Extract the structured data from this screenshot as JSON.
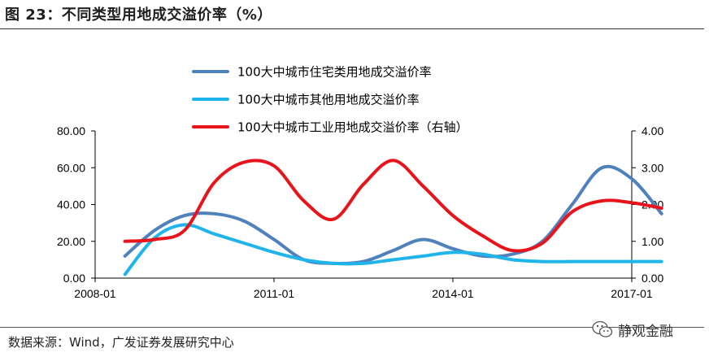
{
  "header": {
    "title": "图 23：不同类型用地成交溢价率（%）"
  },
  "footer": {
    "source": "数据来源：Wind，广发证券发展研究中心",
    "watermark": "静观金融",
    "watermark_icon": "wechat-icon"
  },
  "chart_data": {
    "type": "line",
    "title": "",
    "xlabel": "",
    "ylabel": "",
    "x_tick_labels": [
      "2008-01",
      "2011-01",
      "2014-01",
      "2017-01"
    ],
    "x_range": [
      2008.0,
      2017.0
    ],
    "ylim": [
      0,
      80
    ],
    "y_ticks": [
      "0.00",
      "20.00",
      "40.00",
      "60.00",
      "80.00"
    ],
    "ylim_right": [
      0,
      4
    ],
    "y2_ticks": [
      "0.00",
      "1.00",
      "2.00",
      "3.00",
      "4.00"
    ],
    "grid": false,
    "legend_position": "top-center",
    "series": [
      {
        "name": "100大中城市住宅类用地成交溢价率",
        "axis": "left",
        "color": "#4f81bd",
        "x": [
          2008.5,
          2009.0,
          2009.5,
          2010.0,
          2010.5,
          2011.0,
          2011.5,
          2012.0,
          2012.5,
          2013.0,
          2013.5,
          2014.0,
          2014.5,
          2015.0,
          2015.5,
          2016.0,
          2016.5,
          2017.0,
          2017.5
        ],
        "values": [
          12,
          26,
          34,
          35,
          31,
          21,
          10,
          8,
          9,
          15,
          21,
          16,
          12,
          13,
          20,
          40,
          60,
          54,
          35
        ]
      },
      {
        "name": "100大中城市其他用地成交溢价率",
        "axis": "left",
        "color": "#1fb5ea",
        "x": [
          2008.5,
          2009.0,
          2009.5,
          2010.0,
          2010.5,
          2011.0,
          2011.5,
          2012.0,
          2012.5,
          2013.0,
          2013.5,
          2014.0,
          2014.5,
          2015.0,
          2015.5,
          2016.0,
          2016.5,
          2017.0,
          2017.5
        ],
        "values": [
          2,
          22,
          29,
          24,
          19,
          14,
          10,
          8,
          8,
          10,
          12,
          14,
          13,
          10,
          9,
          9,
          9,
          9,
          9
        ]
      },
      {
        "name": "100大中城市工业用地成交溢价率（右轴）",
        "axis": "right",
        "color": "#e8141c",
        "x": [
          2008.5,
          2009.0,
          2009.5,
          2010.0,
          2010.5,
          2011.0,
          2011.5,
          2012.0,
          2012.5,
          2013.0,
          2013.5,
          2014.0,
          2014.5,
          2015.0,
          2015.5,
          2016.0,
          2016.5,
          2017.0,
          2017.5
        ],
        "values": [
          1.0,
          1.05,
          1.3,
          2.6,
          3.15,
          3.05,
          2.1,
          1.6,
          2.55,
          3.2,
          2.5,
          1.7,
          1.15,
          0.75,
          0.95,
          1.8,
          2.1,
          2.05,
          1.9
        ]
      }
    ]
  }
}
